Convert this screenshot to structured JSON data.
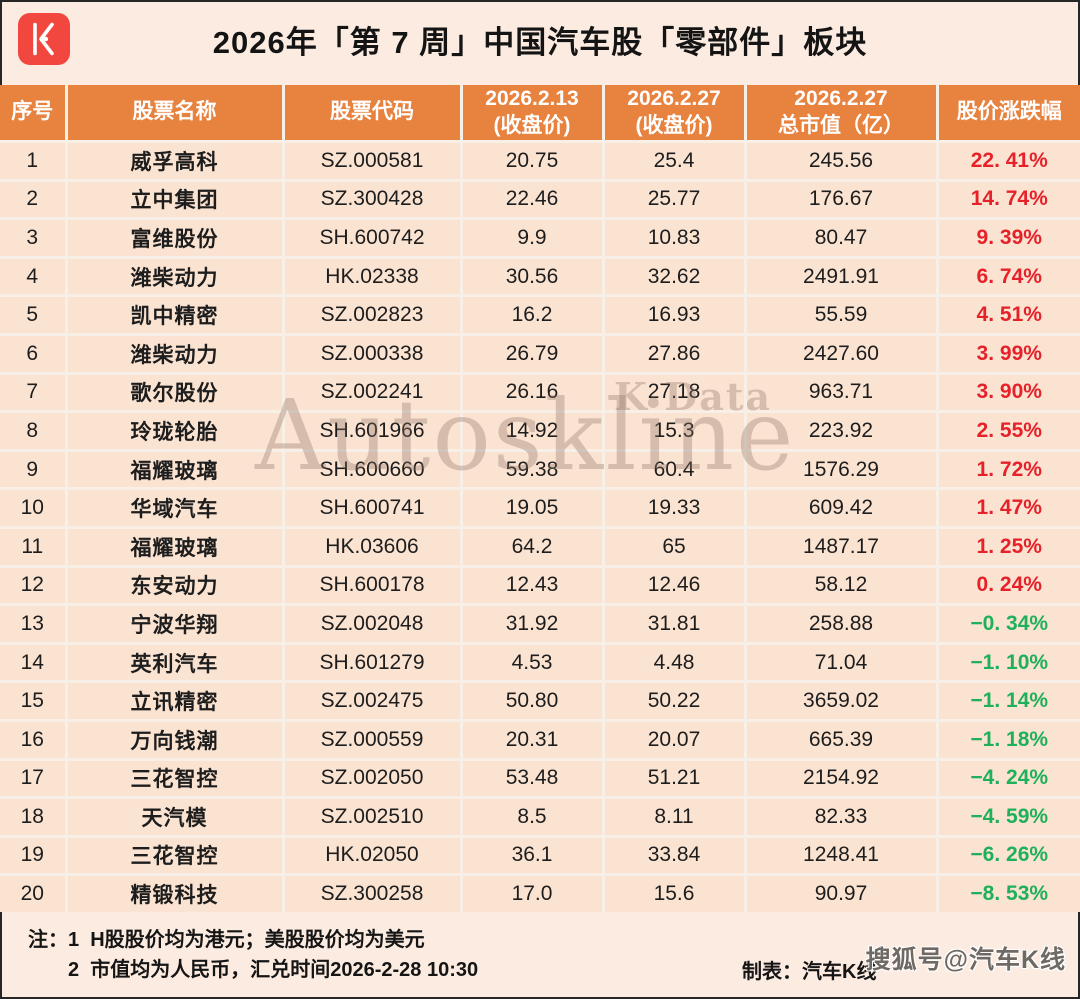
{
  "colors": {
    "accent_orange": "#E8823F",
    "page_bg": "#FCEBE0",
    "row_bg": "#FBE3D2",
    "grid_line": "#F8EFE7",
    "header_text": "#FFFFFF",
    "text_dark": "#1D1D1D",
    "up_red": "#E62129",
    "down_green": "#1FB05C",
    "logo_red": "#F2473E",
    "sohu_gray": "#6F6963",
    "watermark_gray": "#8C7264"
  },
  "watermarks": {
    "center": "Autoskline",
    "center_sub": "K Data",
    "bottom_right": "搜狐号@汽车K线"
  },
  "footer": {
    "note_prefix": "注：",
    "notes": [
      "1  H股股价均为港元；美股股价均为美元",
      "2  市值均为人民币，汇兑时间2026-2-28 10:30"
    ],
    "credit": "制表：汽车K线"
  },
  "chart_data": {
    "type": "table",
    "title": "2026年「第 7 周」中国汽车股「零部件」板块",
    "columns": [
      {
        "key": "no",
        "label": "序号"
      },
      {
        "key": "name",
        "label": "股票名称"
      },
      {
        "key": "code",
        "label": "股票代码"
      },
      {
        "key": "price_0213",
        "label": "2026.2.13",
        "sub": "(收盘价)"
      },
      {
        "key": "price_0227",
        "label": "2026.2.27",
        "sub": "(收盘价)"
      },
      {
        "key": "market_cap",
        "label": "2026.2.27",
        "sub": "总市值（亿）"
      },
      {
        "key": "change",
        "label": "股价涨跌幅"
      }
    ],
    "rows": [
      {
        "no": "1",
        "name": "威孚高科",
        "code": "SZ.000581",
        "price_0213": "20.75",
        "price_0227": "25.4",
        "market_cap": "245.56",
        "change": "22. 41%",
        "direction": "up"
      },
      {
        "no": "2",
        "name": "立中集团",
        "code": "SZ.300428",
        "price_0213": "22.46",
        "price_0227": "25.77",
        "market_cap": "176.67",
        "change": "14. 74%",
        "direction": "up"
      },
      {
        "no": "3",
        "name": "富维股份",
        "code": "SH.600742",
        "price_0213": "9.9",
        "price_0227": "10.83",
        "market_cap": "80.47",
        "change": "9. 39%",
        "direction": "up"
      },
      {
        "no": "4",
        "name": "潍柴动力",
        "code": "HK.02338",
        "price_0213": "30.56",
        "price_0227": "32.62",
        "market_cap": "2491.91",
        "change": "6. 74%",
        "direction": "up"
      },
      {
        "no": "5",
        "name": "凯中精密",
        "code": "SZ.002823",
        "price_0213": "16.2",
        "price_0227": "16.93",
        "market_cap": "55.59",
        "change": "4. 51%",
        "direction": "up"
      },
      {
        "no": "6",
        "name": "潍柴动力",
        "code": "SZ.000338",
        "price_0213": "26.79",
        "price_0227": "27.86",
        "market_cap": "2427.60",
        "change": "3. 99%",
        "direction": "up"
      },
      {
        "no": "7",
        "name": "歌尔股份",
        "code": "SZ.002241",
        "price_0213": "26.16",
        "price_0227": "27.18",
        "market_cap": "963.71",
        "change": "3. 90%",
        "direction": "up"
      },
      {
        "no": "8",
        "name": "玲珑轮胎",
        "code": "SH.601966",
        "price_0213": "14.92",
        "price_0227": "15.3",
        "market_cap": "223.92",
        "change": "2. 55%",
        "direction": "up"
      },
      {
        "no": "9",
        "name": "福耀玻璃",
        "code": "SH.600660",
        "price_0213": "59.38",
        "price_0227": "60.4",
        "market_cap": "1576.29",
        "change": "1. 72%",
        "direction": "up"
      },
      {
        "no": "10",
        "name": "华域汽车",
        "code": "SH.600741",
        "price_0213": "19.05",
        "price_0227": "19.33",
        "market_cap": "609.42",
        "change": "1. 47%",
        "direction": "up"
      },
      {
        "no": "11",
        "name": "福耀玻璃",
        "code": "HK.03606",
        "price_0213": "64.2",
        "price_0227": "65",
        "market_cap": "1487.17",
        "change": "1. 25%",
        "direction": "up"
      },
      {
        "no": "12",
        "name": "东安动力",
        "code": "SH.600178",
        "price_0213": "12.43",
        "price_0227": "12.46",
        "market_cap": "58.12",
        "change": "0. 24%",
        "direction": "up"
      },
      {
        "no": "13",
        "name": "宁波华翔",
        "code": "SZ.002048",
        "price_0213": "31.92",
        "price_0227": "31.81",
        "market_cap": "258.88",
        "change": "−0. 34%",
        "direction": "down"
      },
      {
        "no": "14",
        "name": "英利汽车",
        "code": "SH.601279",
        "price_0213": "4.53",
        "price_0227": "4.48",
        "market_cap": "71.04",
        "change": "−1. 10%",
        "direction": "down"
      },
      {
        "no": "15",
        "name": "立讯精密",
        "code": "SZ.002475",
        "price_0213": "50.80",
        "price_0227": "50.22",
        "market_cap": "3659.02",
        "change": "−1. 14%",
        "direction": "down"
      },
      {
        "no": "16",
        "name": "万向钱潮",
        "code": "SZ.000559",
        "price_0213": "20.31",
        "price_0227": "20.07",
        "market_cap": "665.39",
        "change": "−1. 18%",
        "direction": "down"
      },
      {
        "no": "17",
        "name": "三花智控",
        "code": "SZ.002050",
        "price_0213": "53.48",
        "price_0227": "51.21",
        "market_cap": "2154.92",
        "change": "−4. 24%",
        "direction": "down"
      },
      {
        "no": "18",
        "name": "天汽模",
        "code": "SZ.002510",
        "price_0213": "8.5",
        "price_0227": "8.11",
        "market_cap": "82.33",
        "change": "−4. 59%",
        "direction": "down"
      },
      {
        "no": "19",
        "name": "三花智控",
        "code": "HK.02050",
        "price_0213": "36.1",
        "price_0227": "33.84",
        "market_cap": "1248.41",
        "change": "−6. 26%",
        "direction": "down"
      },
      {
        "no": "20",
        "name": "精锻科技",
        "code": "SZ.300258",
        "price_0213": "17.0",
        "price_0227": "15.6",
        "market_cap": "90.97",
        "change": "−8. 53%",
        "direction": "down"
      }
    ]
  }
}
